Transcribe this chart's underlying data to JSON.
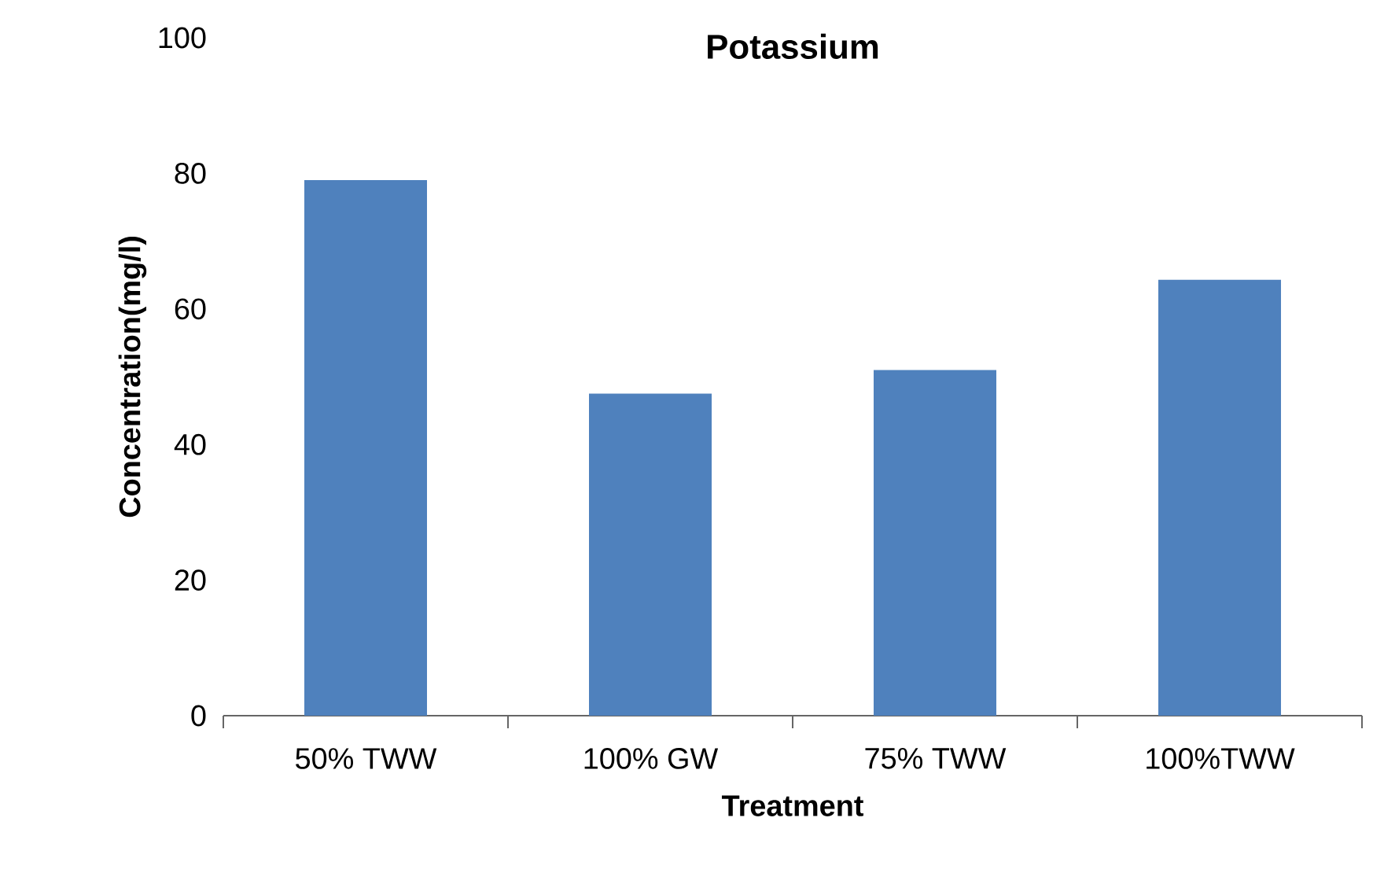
{
  "chart_data": {
    "type": "bar",
    "title": "Potassium",
    "xlabel": "Treatment",
    "ylabel": "Concentration(mg/l)",
    "categories": [
      "50% TWW",
      "100% GW",
      "75% TWW",
      "100%TWW"
    ],
    "values": [
      79,
      47.5,
      51,
      64.3
    ],
    "color": "#4f81bd",
    "ylim": [
      0,
      100
    ],
    "yticks": [
      0,
      20,
      40,
      60,
      80,
      100
    ],
    "grid": false
  }
}
